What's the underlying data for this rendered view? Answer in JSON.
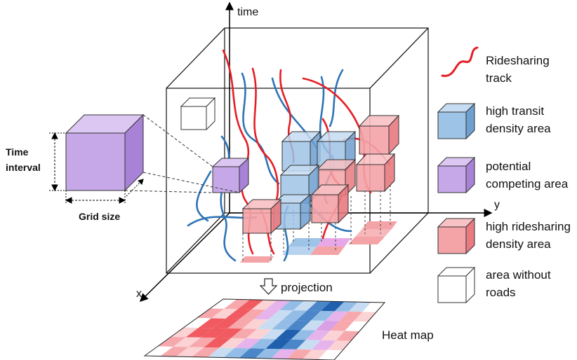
{
  "axes": {
    "time": "time",
    "x": "x",
    "y": "y"
  },
  "time_interval": {
    "line1": "Time",
    "line2": "interval"
  },
  "grid_size": "Grid size",
  "projection": "projection",
  "heat_map": "Heat map",
  "legend": [
    {
      "key": "ridesharing-track",
      "lines": [
        "Ridesharing",
        "track"
      ]
    },
    {
      "key": "high-transit",
      "lines": [
        "high transit",
        "density area"
      ]
    },
    {
      "key": "potential-competing",
      "lines": [
        "potential",
        "competing area"
      ]
    },
    {
      "key": "high-ridesharing",
      "lines": [
        "high ridesharing",
        "density area"
      ]
    },
    {
      "key": "without-roads",
      "lines": [
        "area without",
        "roads"
      ]
    }
  ],
  "colors": {
    "track_red": "#e51e25",
    "track_blue": "#2e74b5",
    "transit_blue": "#9dc3e6",
    "ridesharing_red": "#f4a3a7",
    "competing_purple": "#c6a8e8",
    "no_roads_white": "#ffffff"
  }
}
